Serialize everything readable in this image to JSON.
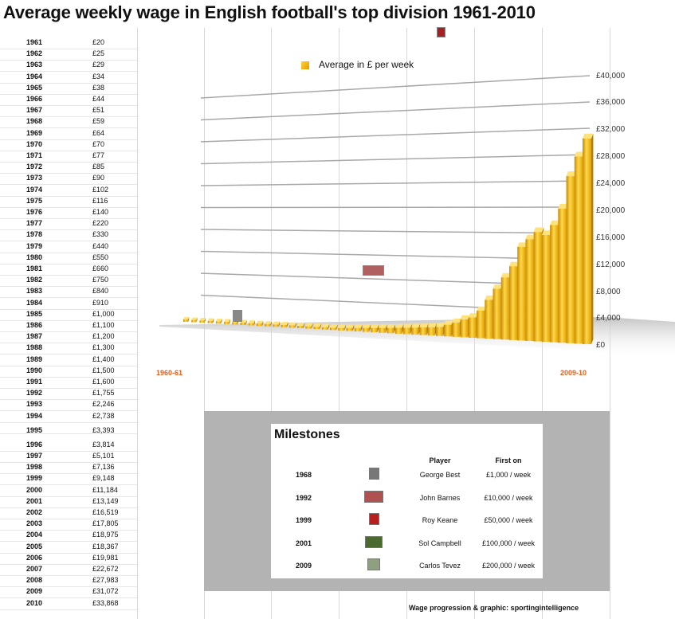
{
  "title": "Average weekly wage in English football's top division 1961-2010",
  "wage_table": [
    {
      "year": "1961",
      "wage": "£20"
    },
    {
      "year": "1962",
      "wage": "£25"
    },
    {
      "year": "1963",
      "wage": "£29"
    },
    {
      "year": "1964",
      "wage": "£34"
    },
    {
      "year": "1965",
      "wage": "£38"
    },
    {
      "year": "1966",
      "wage": "£44"
    },
    {
      "year": "1967",
      "wage": "£51"
    },
    {
      "year": "1968",
      "wage": "£59"
    },
    {
      "year": "1969",
      "wage": "£64"
    },
    {
      "year": "1970",
      "wage": "£70"
    },
    {
      "year": "1971",
      "wage": "£77"
    },
    {
      "year": "1972",
      "wage": "£85"
    },
    {
      "year": "1973",
      "wage": "£90"
    },
    {
      "year": "1974",
      "wage": "£102"
    },
    {
      "year": "1975",
      "wage": "£116"
    },
    {
      "year": "1976",
      "wage": "£140"
    },
    {
      "year": "1977",
      "wage": "£220"
    },
    {
      "year": "1978",
      "wage": "£330"
    },
    {
      "year": "1979",
      "wage": "£440"
    },
    {
      "year": "1980",
      "wage": "£550"
    },
    {
      "year": "1981",
      "wage": "£660"
    },
    {
      "year": "1982",
      "wage": "£750"
    },
    {
      "year": "1983",
      "wage": "£840"
    },
    {
      "year": "1984",
      "wage": "£910"
    },
    {
      "year": "1985",
      "wage": "£1,000"
    },
    {
      "year": "1986",
      "wage": "£1,100"
    },
    {
      "year": "1987",
      "wage": "£1,200"
    },
    {
      "year": "1988",
      "wage": "£1,300"
    },
    {
      "year": "1989",
      "wage": "£1,400"
    },
    {
      "year": "1990",
      "wage": "£1,500"
    },
    {
      "year": "1991",
      "wage": "£1,600"
    },
    {
      "year": "1992",
      "wage": "£1,755"
    },
    {
      "year": "1993",
      "wage": "£2,246"
    },
    {
      "year": "1994",
      "wage": "£2,738"
    },
    {
      "year": "1995",
      "wage": "£3,393"
    },
    {
      "year": "1996",
      "wage": "£3,814"
    },
    {
      "year": "1997",
      "wage": "£5,101"
    },
    {
      "year": "1998",
      "wage": "£7,136"
    },
    {
      "year": "1999",
      "wage": "£9,148"
    },
    {
      "year": "2000",
      "wage": "£11,184"
    },
    {
      "year": "2001",
      "wage": "£13,149"
    },
    {
      "year": "2002",
      "wage": "£16,519"
    },
    {
      "year": "2003",
      "wage": "£17,805"
    },
    {
      "year": "2004",
      "wage": "£18,975"
    },
    {
      "year": "2005",
      "wage": "£18,367"
    },
    {
      "year": "2006",
      "wage": "£19,981"
    },
    {
      "year": "2007",
      "wage": "£22,672"
    },
    {
      "year": "2008",
      "wage": "£27,983"
    },
    {
      "year": "2009",
      "wage": "£31,072"
    },
    {
      "year": "2010",
      "wage": "£33,868"
    }
  ],
  "chart_data": {
    "type": "bar",
    "title": "Average weekly wage in English football's top division 1961-2010",
    "legend": "Average in £ per week",
    "category_labels": [
      "1960-61",
      "2009-10"
    ],
    "categories": [
      "1961",
      "1962",
      "1963",
      "1964",
      "1965",
      "1966",
      "1967",
      "1968",
      "1969",
      "1970",
      "1971",
      "1972",
      "1973",
      "1974",
      "1975",
      "1976",
      "1977",
      "1978",
      "1979",
      "1980",
      "1981",
      "1982",
      "1983",
      "1984",
      "1985",
      "1986",
      "1987",
      "1988",
      "1989",
      "1990",
      "1991",
      "1992",
      "1993",
      "1994",
      "1995",
      "1996",
      "1997",
      "1998",
      "1999",
      "2000",
      "2001",
      "2002",
      "2003",
      "2004",
      "2005",
      "2006",
      "2007",
      "2008",
      "2009",
      "2010"
    ],
    "series": [
      {
        "name": "Average in £ per week",
        "values": [
          20,
          25,
          29,
          34,
          38,
          44,
          51,
          59,
          64,
          70,
          77,
          85,
          90,
          102,
          116,
          140,
          220,
          330,
          440,
          550,
          660,
          750,
          840,
          910,
          1000,
          1100,
          1200,
          1300,
          1400,
          1500,
          1600,
          1755,
          2246,
          2738,
          3393,
          3814,
          5101,
          7136,
          9148,
          11184,
          13149,
          16519,
          17805,
          18975,
          18367,
          19981,
          22672,
          27983,
          31072,
          33868
        ]
      }
    ],
    "ylim": [
      0,
      40000
    ],
    "yticks": [
      0,
      4000,
      8000,
      12000,
      16000,
      20000,
      24000,
      28000,
      32000,
      36000,
      40000
    ],
    "ytick_labels": [
      "£0",
      "£4,000",
      "£8,000",
      "£12,000",
      "£16,000",
      "£20,000",
      "£24,000",
      "£28,000",
      "£32,000",
      "£36,000",
      "£40,000"
    ],
    "grid": true,
    "legend_position": "top-center",
    "bar_color": "#f2b705"
  },
  "milestones": {
    "title": "Milestones",
    "headers": {
      "player": "Player",
      "first_on": "First on"
    },
    "rows": [
      {
        "year": "1968",
        "player": "George Best",
        "first_on": "£1,000 / week",
        "thumb_color": "#777777"
      },
      {
        "year": "1992",
        "player": "John Barnes",
        "first_on": "£10,000 / week",
        "thumb_color": "#b05050"
      },
      {
        "year": "1999",
        "player": "Roy Keane",
        "first_on": "£50,000 / week",
        "thumb_color": "#b82020"
      },
      {
        "year": "2001",
        "player": "Sol Campbell",
        "first_on": "£100,000 / week",
        "thumb_color": "#4a6a30"
      },
      {
        "year": "2009",
        "player": "Carlos Tevez",
        "first_on": "£200,000 / week",
        "thumb_color": "#8fa080"
      }
    ]
  },
  "credit": "Wage progression & graphic: sportingintelligence"
}
